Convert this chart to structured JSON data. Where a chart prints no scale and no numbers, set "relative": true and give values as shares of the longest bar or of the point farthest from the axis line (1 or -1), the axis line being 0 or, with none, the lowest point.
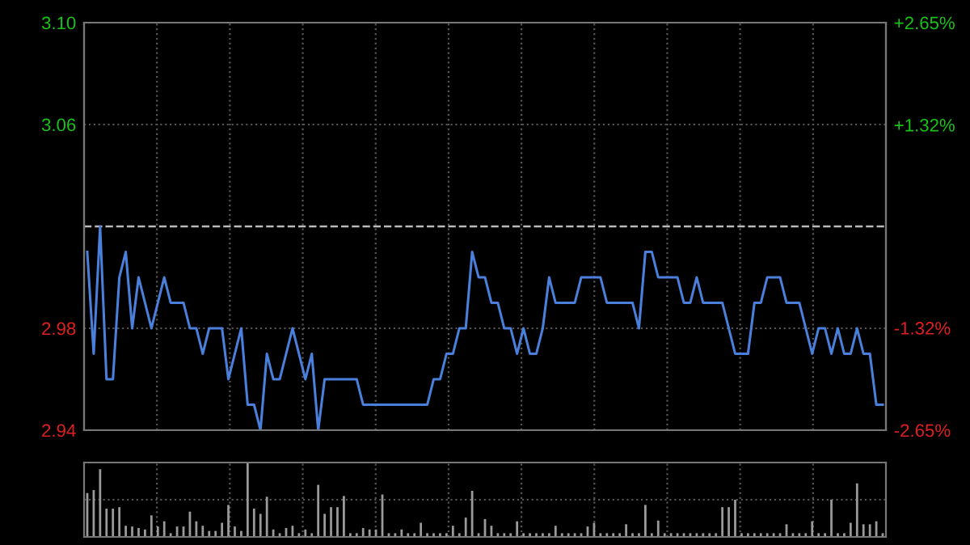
{
  "chart_data": [
    {
      "type": "line",
      "categories": [
        null,
        null,
        null,
        null,
        null,
        null,
        null,
        null,
        null,
        null,
        null,
        null,
        null,
        null,
        null,
        null,
        null,
        null,
        null,
        null,
        null,
        null,
        null,
        null,
        null,
        null,
        null,
        null,
        null,
        null,
        null,
        null,
        null,
        null,
        null,
        null,
        null,
        null,
        null,
        null,
        null,
        null,
        null,
        null,
        null,
        null,
        null,
        null,
        null,
        null,
        null,
        null,
        null,
        null,
        null,
        null,
        null,
        null,
        null,
        null,
        null,
        null,
        null,
        null,
        null,
        null,
        null,
        null,
        null,
        null,
        null,
        null,
        null,
        null,
        null,
        null,
        null,
        null,
        null,
        null,
        null,
        null,
        null,
        null,
        null,
        null,
        null,
        null,
        null,
        null,
        null,
        null,
        null,
        null,
        null,
        null,
        null,
        null,
        null,
        null,
        null,
        null,
        null,
        null,
        null,
        null,
        null,
        null,
        null,
        null,
        null,
        null,
        null,
        null,
        null,
        null,
        null,
        null,
        null,
        null,
        null,
        null,
        null,
        null,
        null
      ],
      "series": [
        {
          "color": "#4a80dc",
          "values": [
            3.01,
            2.97,
            3.02,
            2.96,
            2.96,
            3.0,
            3.01,
            2.98,
            3.0,
            2.99,
            2.98,
            2.99,
            3.0,
            2.99,
            2.99,
            2.99,
            2.98,
            2.98,
            2.97,
            2.98,
            2.98,
            2.98,
            2.96,
            2.97,
            2.98,
            2.95,
            2.95,
            2.94,
            2.97,
            2.96,
            2.96,
            2.97,
            2.98,
            2.97,
            2.96,
            2.97,
            2.94,
            2.96,
            2.96,
            2.96,
            2.96,
            2.96,
            2.96,
            2.95,
            2.95,
            2.95,
            2.95,
            2.95,
            2.95,
            2.95,
            2.95,
            2.95,
            2.95,
            2.95,
            2.96,
            2.96,
            2.97,
            2.97,
            2.98,
            2.98,
            3.01,
            3.0,
            3.0,
            2.99,
            2.99,
            2.98,
            2.98,
            2.97,
            2.98,
            2.97,
            2.97,
            2.98,
            3.0,
            2.99,
            2.99,
            2.99,
            2.99,
            3.0,
            3.0,
            3.0,
            3.0,
            2.99,
            2.99,
            2.99,
            2.99,
            2.99,
            2.98,
            3.01,
            3.01,
            3.0,
            3.0,
            3.0,
            3.0,
            2.99,
            2.99,
            3.0,
            2.99,
            2.99,
            2.99,
            2.99,
            2.98,
            2.97,
            2.97,
            2.97,
            2.99,
            2.99,
            3.0,
            3.0,
            3.0,
            2.99,
            2.99,
            2.99,
            2.98,
            2.97,
            2.98,
            2.98,
            2.97,
            2.98,
            2.97,
            2.97,
            2.98,
            2.97,
            2.97,
            2.95,
            2.95
          ]
        }
      ],
      "ylim": [
        2.94,
        3.1
      ],
      "yticks": [
        2.94,
        2.98,
        3.06,
        {
          "value": 3.1,
          "label": "3.10"
        }
      ],
      "y2lim": [
        -2.65,
        2.65
      ],
      "y2ticks": [
        {
          "value": -2.65,
          "label": "-2.65%"
        },
        {
          "value": -1.32,
          "label": "-1.32%"
        },
        {
          "value": 1.32,
          "label": "+1.32%"
        },
        {
          "value": 2.65,
          "label": "+2.65%"
        }
      ],
      "ref_lines": [
        {
          "axis": "y",
          "value": 3.02,
          "color": "#bbbbbb",
          "line_style": "dashed"
        }
      ],
      "grid": true,
      "line_style": "solid",
      "tick_labels": "y"
    },
    {
      "type": "bar",
      "relative": true,
      "color": "#9a9a9a",
      "grid": true,
      "tick_labels": false,
      "categories": [
        null,
        null,
        null,
        null,
        null,
        null,
        null,
        null,
        null,
        null,
        null,
        null,
        null,
        null,
        null,
        null,
        null,
        null,
        null,
        null,
        null,
        null,
        null,
        null,
        null,
        null,
        null,
        null,
        null,
        null,
        null,
        null,
        null,
        null,
        null,
        null,
        null,
        null,
        null,
        null,
        null,
        null,
        null,
        null,
        null,
        null,
        null,
        null,
        null,
        null,
        null,
        null,
        null,
        null,
        null,
        null,
        null,
        null,
        null,
        null,
        null,
        null,
        null,
        null,
        null,
        null,
        null,
        null,
        null,
        null,
        null,
        null,
        null,
        null,
        null,
        null,
        null,
        null,
        null,
        null,
        null,
        null,
        null,
        null,
        null,
        null,
        null,
        null,
        null,
        null,
        null,
        null,
        null,
        null,
        null,
        null,
        null,
        null,
        null,
        null,
        null,
        null,
        null,
        null,
        null,
        null,
        null,
        null,
        null,
        null,
        null,
        null,
        null,
        null,
        null,
        null,
        null,
        null,
        null,
        null,
        null,
        null,
        null,
        null,
        null
      ],
      "values": [
        0.59,
        0.63,
        0.91,
        0.38,
        0.38,
        0.4,
        0.15,
        0.14,
        0.12,
        0.1,
        0.29,
        0.14,
        0.21,
        0.05,
        0.14,
        0.14,
        0.34,
        0.21,
        0.15,
        0.08,
        0.08,
        0.19,
        0.43,
        0.14,
        0.08,
        1.0,
        0.38,
        0.31,
        0.54,
        0.1,
        0.05,
        0.12,
        0.15,
        0.05,
        0.1,
        0.05,
        0.7,
        0.31,
        0.4,
        0.4,
        0.55,
        0.05,
        0.05,
        0.12,
        0.1,
        0.1,
        0.57,
        0.05,
        0.05,
        0.1,
        0.05,
        0.05,
        0.19,
        0.05,
        0.05,
        0.05,
        0.05,
        0.15,
        0.05,
        0.26,
        0.62,
        0.05,
        0.24,
        0.15,
        0.05,
        0.05,
        0.05,
        0.21,
        0.05,
        0.05,
        0.05,
        0.05,
        0.05,
        0.15,
        0.05,
        0.05,
        0.05,
        0.05,
        0.14,
        0.19,
        0.05,
        0.05,
        0.05,
        0.05,
        0.17,
        0.05,
        0.05,
        0.43,
        0.05,
        0.22,
        0.05,
        0.05,
        0.05,
        0.05,
        0.05,
        0.05,
        0.05,
        0.05,
        0.05,
        0.4,
        0.4,
        0.5,
        0.05,
        0.05,
        0.05,
        0.05,
        0.05,
        0.05,
        0.05,
        0.17,
        0.05,
        0.05,
        0.05,
        0.21,
        0.05,
        0.05,
        0.5,
        0.05,
        0.05,
        0.19,
        0.72,
        0.17,
        0.17,
        0.21,
        0.05
      ]
    }
  ]
}
